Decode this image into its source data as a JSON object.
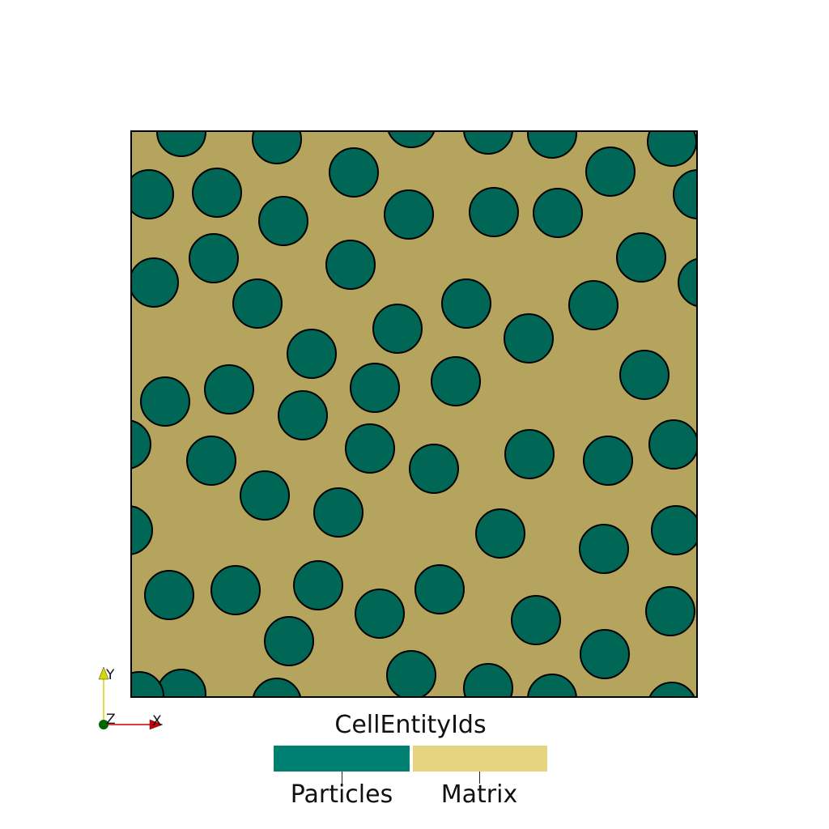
{
  "legend": {
    "title": "CellEntityIds",
    "entries": [
      {
        "label": "Particles",
        "color": "#008070"
      },
      {
        "label": "Matrix",
        "color": "#e6d481"
      }
    ]
  },
  "axes": {
    "x": "X",
    "y": "Y",
    "z": "Z"
  },
  "colors": {
    "matrix_render": "#b5a45e",
    "particle_render": "#006655",
    "outline": "#000000",
    "x_axis": "#cc0000",
    "y_axis": "#d6d600",
    "z_axis": "#006600"
  },
  "particle_count": 61
}
